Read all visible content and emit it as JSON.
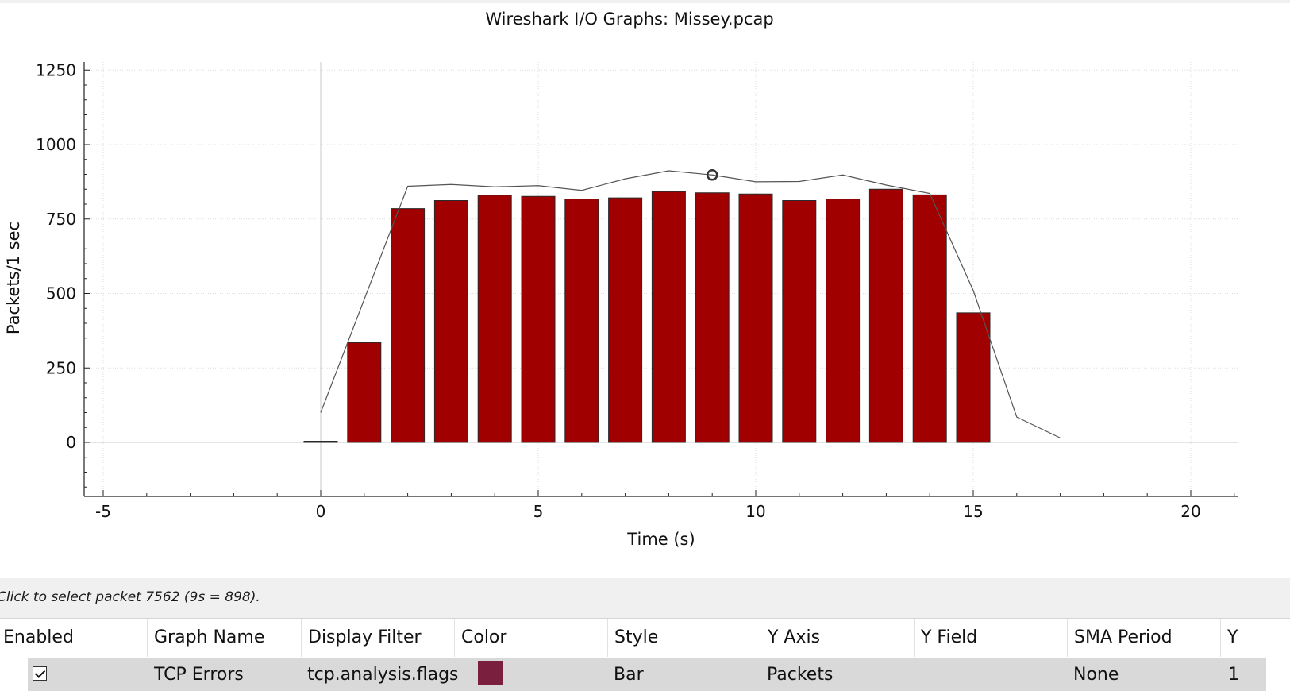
{
  "chart_data": {
    "type": "bar",
    "title": "Wireshark I/O Graphs: Missey.pcap",
    "xlabel": "Time (s)",
    "ylabel": "Packets/1 sec",
    "xlim": [
      -5.5,
      21.1
    ],
    "ylim": [
      -180,
      1260
    ],
    "xticks": [
      -5,
      0,
      5,
      10,
      15,
      20
    ],
    "yticks": [
      0,
      250,
      500,
      750,
      1000,
      1250
    ],
    "grid": true,
    "legend": "none",
    "series": [
      {
        "name": "TCP Errors",
        "type": "bar",
        "color": "#a00000",
        "x": [
          0,
          1,
          2,
          3,
          4,
          5,
          6,
          7,
          8,
          9,
          10,
          11,
          12,
          13,
          14,
          15
        ],
        "values": [
          0,
          335,
          785,
          812,
          830,
          826,
          817,
          821,
          842,
          838,
          834,
          812,
          817,
          850,
          831,
          435
        ]
      },
      {
        "type": "line",
        "color": "#555555",
        "x": [
          0,
          2,
          3,
          4,
          5,
          6,
          7,
          8,
          9,
          10,
          11,
          12,
          13,
          14,
          15,
          16,
          17
        ],
        "values": [
          100,
          860,
          866,
          858,
          862,
          846,
          885,
          912,
          898,
          875,
          876,
          898,
          864,
          836,
          510,
          85,
          15
        ]
      }
    ],
    "highlight": {
      "x": 9,
      "y": 898
    }
  },
  "status": {
    "text": "Click to select packet 7562 (9s = 898)."
  },
  "graph_table": {
    "columns": [
      "Enabled",
      "Graph Name",
      "Display Filter",
      "Color",
      "Style",
      "Y Axis",
      "Y Field",
      "SMA Period",
      "Y"
    ],
    "row": {
      "enabled": true,
      "name": "TCP Errors",
      "filter": "tcp.analysis.flags",
      "color": "#7a1f3d",
      "style": "Bar",
      "y_axis": "Packets",
      "y_field": "",
      "sma_period": "None",
      "y": "1"
    }
  }
}
